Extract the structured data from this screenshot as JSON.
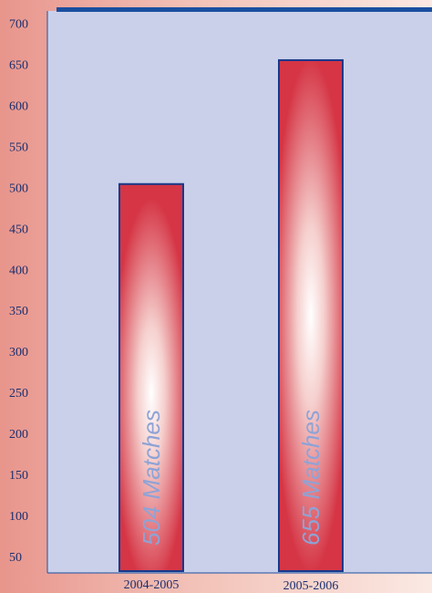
{
  "chart_data": {
    "type": "bar",
    "categories": [
      "2004-2005",
      "2005-2006"
    ],
    "values": [
      504,
      655
    ],
    "bar_labels": [
      "504 Matches",
      "655 Matches"
    ],
    "yticks": [
      50,
      100,
      150,
      200,
      250,
      300,
      350,
      400,
      450,
      500,
      550,
      600,
      650,
      700
    ],
    "ylim": [
      30,
      715
    ],
    "grid": false,
    "colors": {
      "plot_bg": "#cbd0ea",
      "frame": "#1a4fa0",
      "bar_stroke": "#17398a",
      "bar_core": "#ffffff",
      "bar_edge": "#d53545",
      "tick_text": "#1c2f6e",
      "bar_label_text": "#8ea3d6"
    }
  }
}
